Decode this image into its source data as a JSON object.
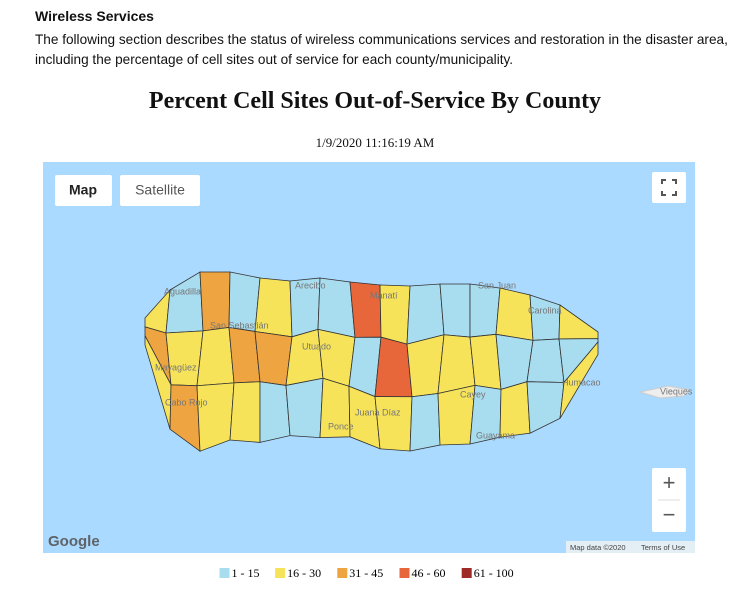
{
  "section": {
    "title": "Wireless Services",
    "body": "The following section describes the status of wireless communications services and restoration in the disaster area, including the percentage of cell sites out of service for each county/municipality."
  },
  "map": {
    "title": "Percent Cell Sites Out-of-Service By County",
    "timestamp": "1/9/2020 11:16:19 AM",
    "controls": [
      "Map",
      "Satellite"
    ],
    "zoom": [
      "+",
      "−"
    ],
    "places": [
      "Arecibo",
      "Manatí",
      "San Juan",
      "Aguadilla",
      "San Sebastián",
      "Utuado",
      "Mayagüez",
      "Cabo Rojo",
      "Ponce",
      "Juana Díaz",
      "Cayey",
      "Guayama",
      "Humacao",
      "Carolina",
      "Vieques"
    ],
    "logo": "Google",
    "attribution": "Map data ©2020",
    "terms": "Terms of Use",
    "legend": [
      {
        "label": "1 - 15",
        "color": "#a8dcef"
      },
      {
        "label": "16 - 30",
        "color": "#f6e35a"
      },
      {
        "label": "31 - 45",
        "color": "#eea441"
      },
      {
        "label": "46 - 60",
        "color": "#e8673a"
      },
      {
        "label": "61 - 100",
        "color": "#9e2a2a"
      }
    ]
  }
}
